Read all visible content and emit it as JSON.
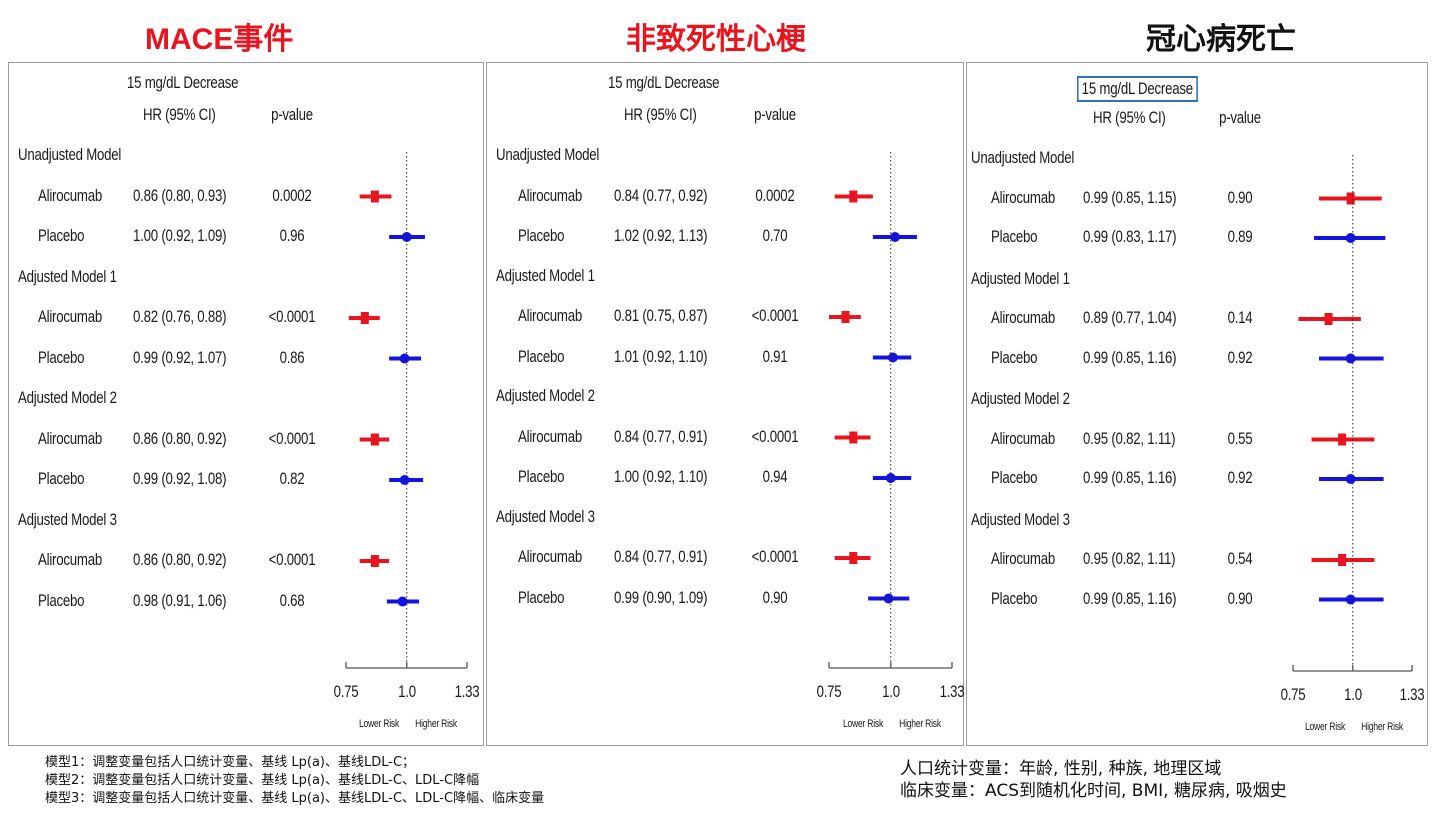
{
  "colors": {
    "alirocumab": "#e8141e",
    "placebo": "#1414e0",
    "title_red": "#e8141e",
    "title_black": "#111111"
  },
  "titles": [
    "MACE事件",
    "非致死性心梗",
    "冠心病死亡"
  ],
  "header": {
    "line1": "15 mg/dL Decrease",
    "line2": "HR (95% CI)",
    "pvalue": "p-value"
  },
  "axis": {
    "ticks": [
      "0.75",
      "1.0",
      "1.33"
    ],
    "lower": "Lower Risk",
    "higher": "Higher Risk"
  },
  "footnotes": [
    "模型1：调整变量包括人口统计变量、基线 Lp(a)、基线LDL-C；",
    "模型2：调整变量包括人口统计变量、基线 Lp(a)、基线LDL-C、LDL-C降幅",
    "模型3：调整变量包括人口统计变量、基线 Lp(a)、基线LDL-C、LDL-C降幅、临床变量"
  ],
  "definitions": [
    "人口统计变量：年龄, 性别, 种族, 地理区域",
    "临床变量：ACS到随机化时间, BMI, 糖尿病, 吸烟史"
  ],
  "chart_data": [
    {
      "type": "forest",
      "title": "MACE事件",
      "x_scale": "log",
      "xlim": [
        0.75,
        1.33
      ],
      "reference_line": 1.0,
      "groups": [
        {
          "name": "Unadjusted Model",
          "rows": [
            {
              "label": "Alirocumab",
              "hr": 0.86,
              "lo": 0.8,
              "hi": 0.93,
              "text": "0.86 (0.80, 0.93)",
              "p": "0.0002"
            },
            {
              "label": "Placebo",
              "hr": 1.0,
              "lo": 0.92,
              "hi": 1.09,
              "text": "1.00 (0.92, 1.09)",
              "p": "0.96"
            }
          ]
        },
        {
          "name": "Adjusted Model 1",
          "rows": [
            {
              "label": "Alirocumab",
              "hr": 0.82,
              "lo": 0.76,
              "hi": 0.88,
              "text": "0.82 (0.76, 0.88)",
              "p": "<0.0001"
            },
            {
              "label": "Placebo",
              "hr": 0.99,
              "lo": 0.92,
              "hi": 1.07,
              "text": "0.99 (0.92, 1.07)",
              "p": "0.86"
            }
          ]
        },
        {
          "name": "Adjusted Model 2",
          "rows": [
            {
              "label": "Alirocumab",
              "hr": 0.86,
              "lo": 0.8,
              "hi": 0.92,
              "text": "0.86 (0.80, 0.92)",
              "p": "<0.0001"
            },
            {
              "label": "Placebo",
              "hr": 0.99,
              "lo": 0.92,
              "hi": 1.08,
              "text": "0.99 (0.92, 1.08)",
              "p": "0.82"
            }
          ]
        },
        {
          "name": "Adjusted Model 3",
          "rows": [
            {
              "label": "Alirocumab",
              "hr": 0.86,
              "lo": 0.8,
              "hi": 0.92,
              "text": "0.86 (0.80, 0.92)",
              "p": "<0.0001"
            },
            {
              "label": "Placebo",
              "hr": 0.98,
              "lo": 0.91,
              "hi": 1.06,
              "text": "0.98 (0.91, 1.06)",
              "p": "0.68"
            }
          ]
        }
      ]
    },
    {
      "type": "forest",
      "title": "非致死性心梗",
      "x_scale": "log",
      "xlim": [
        0.75,
        1.33
      ],
      "reference_line": 1.0,
      "groups": [
        {
          "name": "Unadjusted Model",
          "rows": [
            {
              "label": "Alirocumab",
              "hr": 0.84,
              "lo": 0.77,
              "hi": 0.92,
              "text": "0.84 (0.77, 0.92)",
              "p": "0.0002"
            },
            {
              "label": "Placebo",
              "hr": 1.02,
              "lo": 0.92,
              "hi": 1.13,
              "text": "1.02 (0.92, 1.13)",
              "p": "0.70"
            }
          ]
        },
        {
          "name": "Adjusted Model 1",
          "rows": [
            {
              "label": "Alirocumab",
              "hr": 0.81,
              "lo": 0.75,
              "hi": 0.87,
              "text": "0.81 (0.75, 0.87)",
              "p": "<0.0001"
            },
            {
              "label": "Placebo",
              "hr": 1.01,
              "lo": 0.92,
              "hi": 1.1,
              "text": "1.01 (0.92, 1.10)",
              "p": "0.91"
            }
          ]
        },
        {
          "name": "Adjusted Model 2",
          "rows": [
            {
              "label": "Alirocumab",
              "hr": 0.84,
              "lo": 0.77,
              "hi": 0.91,
              "text": "0.84 (0.77, 0.91)",
              "p": "<0.0001"
            },
            {
              "label": "Placebo",
              "hr": 1.0,
              "lo": 0.92,
              "hi": 1.1,
              "text": "1.00 (0.92, 1.10)",
              "p": "0.94"
            }
          ]
        },
        {
          "name": "Adjusted Model 3",
          "rows": [
            {
              "label": "Alirocumab",
              "hr": 0.84,
              "lo": 0.77,
              "hi": 0.91,
              "text": "0.84 (0.77, 0.91)",
              "p": "<0.0001"
            },
            {
              "label": "Placebo",
              "hr": 0.99,
              "lo": 0.9,
              "hi": 1.09,
              "text": "0.99 (0.90, 1.09)",
              "p": "0.90"
            }
          ]
        }
      ]
    },
    {
      "type": "forest",
      "title": "冠心病死亡",
      "x_scale": "log",
      "xlim": [
        0.75,
        1.33
      ],
      "reference_line": 1.0,
      "groups": [
        {
          "name": "Unadjusted Model",
          "rows": [
            {
              "label": "Alirocumab",
              "hr": 0.99,
              "lo": 0.85,
              "hi": 1.15,
              "text": "0.99 (0.85, 1.15)",
              "p": "0.90"
            },
            {
              "label": "Placebo",
              "hr": 0.99,
              "lo": 0.83,
              "hi": 1.17,
              "text": "0.99 (0.83, 1.17)",
              "p": "0.89"
            }
          ]
        },
        {
          "name": "Adjusted Model 1",
          "rows": [
            {
              "label": "Alirocumab",
              "hr": 0.89,
              "lo": 0.77,
              "hi": 1.04,
              "text": "0.89 (0.77, 1.04)",
              "p": "0.14"
            },
            {
              "label": "Placebo",
              "hr": 0.99,
              "lo": 0.85,
              "hi": 1.16,
              "text": "0.99 (0.85, 1.16)",
              "p": "0.92"
            }
          ]
        },
        {
          "name": "Adjusted Model 2",
          "rows": [
            {
              "label": "Alirocumab",
              "hr": 0.95,
              "lo": 0.82,
              "hi": 1.11,
              "text": "0.95 (0.82, 1.11)",
              "p": "0.55"
            },
            {
              "label": "Placebo",
              "hr": 0.99,
              "lo": 0.85,
              "hi": 1.16,
              "text": "0.99 (0.85, 1.16)",
              "p": "0.92"
            }
          ]
        },
        {
          "name": "Adjusted Model 3",
          "rows": [
            {
              "label": "Alirocumab",
              "hr": 0.95,
              "lo": 0.82,
              "hi": 1.11,
              "text": "0.95 (0.82, 1.11)",
              "p": "0.54"
            },
            {
              "label": "Placebo",
              "hr": 0.99,
              "lo": 0.85,
              "hi": 1.16,
              "text": "0.99 (0.85, 1.16)",
              "p": "0.90"
            }
          ]
        }
      ]
    }
  ]
}
